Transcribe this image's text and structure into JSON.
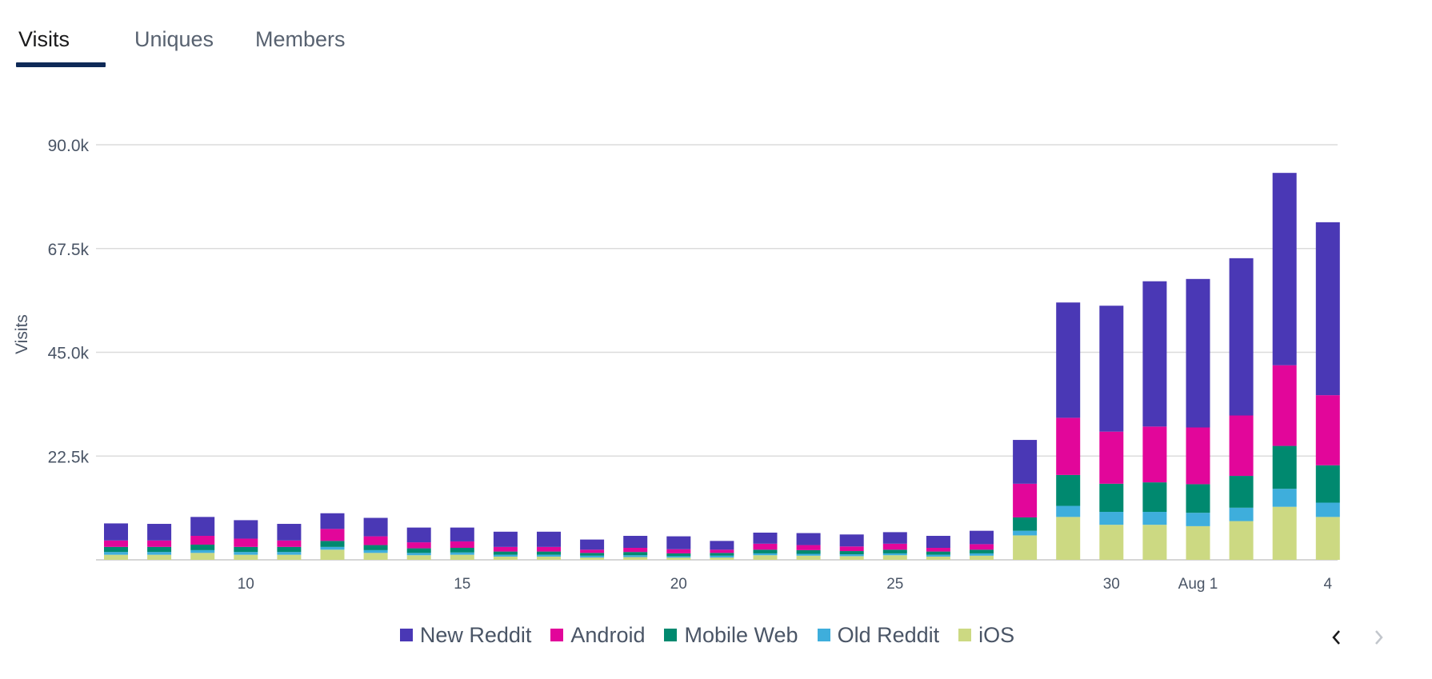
{
  "tabs": [
    {
      "label": "Visits",
      "active": true
    },
    {
      "label": "Uniques",
      "active": false
    },
    {
      "label": "Members",
      "active": false
    }
  ],
  "colors": {
    "new_reddit": "#4a38b5",
    "android": "#e2069a",
    "mobile_web": "#00896f",
    "old_reddit": "#3eaedc",
    "ios": "#ccd982",
    "grid": "#dcdcdc",
    "axis_text": "#4a5566",
    "tab_underline": "#0f2a57"
  },
  "nav": {
    "prev_icon": "chevron-left-icon",
    "next_icon": "chevron-right-icon"
  },
  "chart_data": {
    "type": "bar",
    "stacked": true,
    "ylabel": "Visits",
    "ylim": [
      0,
      90000
    ],
    "yticks": [
      22500,
      45000,
      67500,
      90000
    ],
    "ytick_labels": [
      "22.5k",
      "45.0k",
      "67.5k",
      "90.0k"
    ],
    "grid": true,
    "legend_position": "bottom",
    "categories": [
      "Jul 7",
      "Jul 8",
      "Jul 9",
      "Jul 10",
      "Jul 11",
      "Jul 12",
      "Jul 13",
      "Jul 14",
      "Jul 15",
      "Jul 16",
      "Jul 17",
      "Jul 18",
      "Jul 19",
      "Jul 20",
      "Jul 21",
      "Jul 22",
      "Jul 23",
      "Jul 24",
      "Jul 25",
      "Jul 26",
      "Jul 27",
      "Jul 28",
      "Jul 29",
      "Jul 30",
      "Jul 31",
      "Aug 1",
      "Aug 2",
      "Aug 3",
      "Aug 4"
    ],
    "xtick_labels": [
      {
        "category": "Jul 10",
        "label": "10"
      },
      {
        "category": "Jul 15",
        "label": "15"
      },
      {
        "category": "Jul 20",
        "label": "20"
      },
      {
        "category": "Jul 25",
        "label": "25"
      },
      {
        "category": "Jul 30",
        "label": "30"
      },
      {
        "category": "Aug 1",
        "label": "Aug 1"
      },
      {
        "category": "Aug 4",
        "label": "4"
      }
    ],
    "series": [
      {
        "key": "ios",
        "name": "iOS",
        "values": [
          1100,
          1100,
          1500,
          1100,
          1100,
          2200,
          1500,
          1000,
          1100,
          700,
          700,
          500,
          600,
          500,
          500,
          1000,
          900,
          800,
          1000,
          700,
          900,
          5300,
          9300,
          7600,
          7600,
          7300,
          8400,
          11500,
          9300
        ]
      },
      {
        "key": "old_reddit",
        "name": "Old Reddit",
        "values": [
          600,
          600,
          600,
          600,
          600,
          600,
          600,
          500,
          500,
          400,
          400,
          400,
          400,
          300,
          400,
          400,
          400,
          400,
          400,
          400,
          500,
          1000,
          2400,
          2800,
          2800,
          2900,
          2900,
          3900,
          3100
        ]
      },
      {
        "key": "mobile_web",
        "name": "Mobile Web",
        "values": [
          1100,
          1100,
          1200,
          1100,
          1100,
          1300,
          1100,
          1000,
          1000,
          700,
          700,
          600,
          700,
          600,
          600,
          800,
          800,
          700,
          800,
          700,
          800,
          2900,
          6700,
          6100,
          6400,
          6200,
          6900,
          9300,
          8100
        ]
      },
      {
        "key": "android",
        "name": "Android",
        "values": [
          1400,
          1400,
          1900,
          1800,
          1400,
          2600,
          1900,
          1300,
          1400,
          1000,
          1000,
          700,
          900,
          900,
          700,
          1300,
          1100,
          1000,
          1300,
          800,
          1200,
          7300,
          12400,
          11300,
          12100,
          12300,
          13100,
          17500,
          15200
        ]
      },
      {
        "key": "new_reddit",
        "name": "New Reddit",
        "values": [
          3700,
          3600,
          4100,
          4000,
          3600,
          3400,
          4000,
          3200,
          3000,
          3300,
          3300,
          2200,
          2600,
          2800,
          1900,
          2400,
          2600,
          2600,
          2500,
          2600,
          2900,
          9500,
          25000,
          27300,
          31500,
          32200,
          34100,
          41700,
          37500
        ]
      }
    ],
    "legend_order": [
      "new_reddit",
      "android",
      "mobile_web",
      "old_reddit",
      "ios"
    ]
  }
}
